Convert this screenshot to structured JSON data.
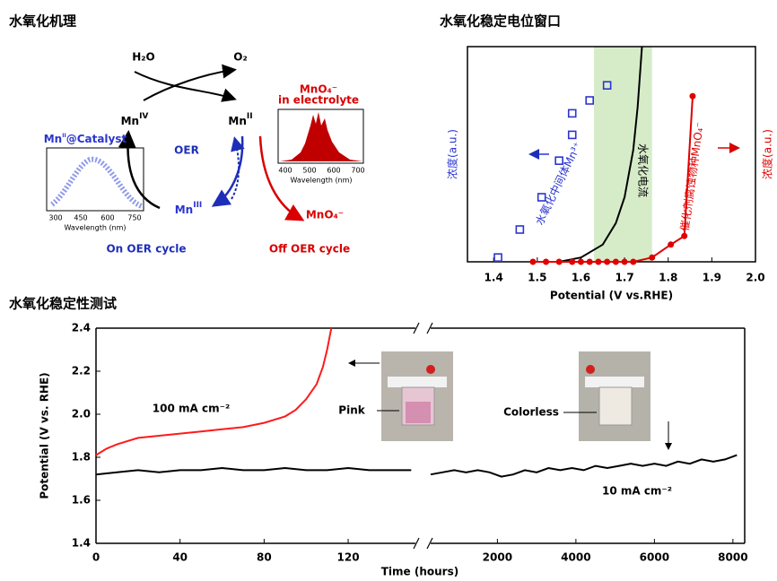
{
  "diagram": {
    "title": "水氧化机理",
    "reactants": [
      "H₂O",
      "O₂"
    ],
    "nodes": [
      {
        "text": "Mn",
        "sup": "IV"
      },
      {
        "text": "Mn",
        "sup": "II"
      },
      {
        "text": "Mn",
        "sup": "III"
      },
      {
        "text": "MnO₄⁻"
      }
    ],
    "center": "OER",
    "insets": [
      {
        "label": "Mn",
        "label_sup": "II",
        "label_rest": "@Catalyst",
        "xticks": [
          300,
          450,
          600,
          750
        ],
        "xlabel": "Wavelength (nm)"
      },
      {
        "label": "MnO₄⁻",
        "label2": "in electrolyte",
        "xticks": [
          400,
          500,
          600,
          700
        ],
        "xlabel": "Wavelength (nm)"
      }
    ],
    "cycles": [
      "On OER cycle",
      "Off OER cycle"
    ]
  },
  "chart_data": [
    {
      "type": "scatter",
      "title": "水氧化稳定电位窗口",
      "xlabel": "Potential (V vs.RHE)",
      "ylabel_left": "浓度(a.u.)",
      "ylabel_right": "浓度(a.u.)",
      "xlim": [
        1.34,
        2.0
      ],
      "xticks": [
        1.4,
        1.5,
        1.6,
        1.7,
        1.8,
        1.9,
        {
          "value": 2,
          "label": "2.0"
        }
      ],
      "ylim": [
        0,
        100
      ],
      "band": [
        1.63,
        1.763
      ],
      "band_color": "#d6ecc9",
      "series": [
        {
          "name": "水氧化中间体Mn³⁺",
          "color": "#2b35d0",
          "mode": "markers",
          "x": [
            1.41,
            1.46,
            1.51,
            1.55,
            1.58,
            1.58,
            1.62,
            1.66
          ],
          "values": [
            2,
            15,
            30,
            47,
            59,
            69,
            75,
            82
          ]
        },
        {
          "name": "水氧化电流",
          "color": "#000000",
          "mode": "line",
          "x": [
            1.55,
            1.6,
            1.65,
            1.68,
            1.7,
            1.72,
            1.73,
            1.74
          ],
          "values": [
            0,
            2,
            8,
            18,
            30,
            52,
            72,
            100
          ]
        },
        {
          "name": "催化剂腐蚀物种MnO₄⁻",
          "color": "#e00000",
          "mode": "lines+markers",
          "x": [
            1.49,
            1.52,
            1.55,
            1.58,
            1.6,
            1.62,
            1.64,
            1.66,
            1.68,
            1.7,
            1.72,
            1.763,
            1.806,
            1.837,
            1.856
          ],
          "values": [
            0,
            0,
            0,
            0,
            0,
            0,
            0,
            0,
            0,
            0,
            0,
            2,
            8,
            12,
            77
          ]
        }
      ]
    },
    {
      "type": "line",
      "title": "水氧化稳定性测试",
      "xlabel": "Time (hours)",
      "ylabel": "Potential (V vs. RHE)",
      "ylim": [
        1.4,
        2.4
      ],
      "yticks": [
        1.4,
        1.6,
        1.8,
        {
          "value": 2,
          "label": "2.0"
        },
        2.2,
        2.4
      ],
      "annotations": [
        "Pink",
        "Colorless"
      ],
      "panels": [
        {
          "xlim": [
            0,
            152
          ],
          "xticks": [
            0,
            40,
            80,
            120
          ],
          "series": [
            {
              "name": "100 mA cm⁻²",
              "color": "#ff1a1a",
              "x": [
                0,
                5,
                10,
                20,
                30,
                40,
                50,
                60,
                70,
                80,
                90,
                95,
                100,
                105,
                108,
                110,
                112
              ],
              "values": [
                1.81,
                1.84,
                1.86,
                1.89,
                1.9,
                1.91,
                1.92,
                1.93,
                1.94,
                1.96,
                1.99,
                2.02,
                2.07,
                2.14,
                2.22,
                2.3,
                2.4
              ]
            },
            {
              "color": "#000000",
              "x": [
                0,
                10,
                20,
                30,
                40,
                50,
                60,
                70,
                80,
                90,
                100,
                110,
                120,
                130,
                140,
                150
              ],
              "values": [
                1.72,
                1.73,
                1.74,
                1.73,
                1.74,
                1.74,
                1.75,
                1.74,
                1.74,
                1.75,
                1.74,
                1.74,
                1.75,
                1.74,
                1.74,
                1.74
              ]
            }
          ]
        },
        {
          "xlim": [
            300,
            8300
          ],
          "xticks": [
            2000,
            4000,
            6000,
            8000
          ],
          "series": [
            {
              "name": "10 mA cm⁻²",
              "color": "#000000",
              "x": [
                300,
                600,
                900,
                1200,
                1500,
                1800,
                2100,
                2400,
                2700,
                3000,
                3300,
                3600,
                3900,
                4200,
                4500,
                4800,
                5100,
                5400,
                5700,
                6000,
                6300,
                6600,
                6900,
                7200,
                7500,
                7800,
                8100
              ],
              "values": [
                1.72,
                1.73,
                1.74,
                1.73,
                1.74,
                1.73,
                1.71,
                1.72,
                1.74,
                1.73,
                1.75,
                1.74,
                1.75,
                1.74,
                1.76,
                1.75,
                1.76,
                1.77,
                1.76,
                1.77,
                1.76,
                1.78,
                1.77,
                1.79,
                1.78,
                1.79,
                1.81
              ]
            }
          ]
        }
      ]
    }
  ]
}
